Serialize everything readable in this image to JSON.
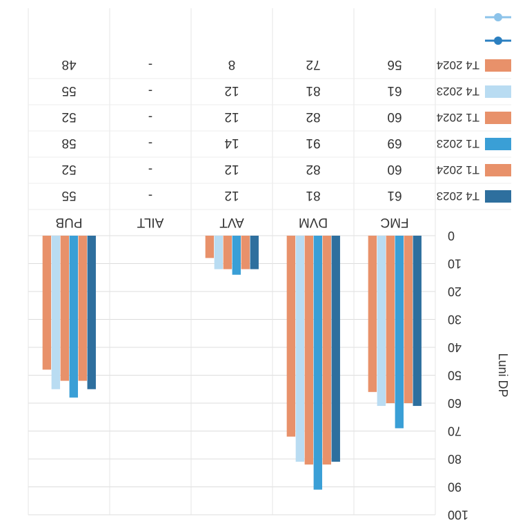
{
  "chart_data": {
    "type": "bar",
    "ylabel": "Luni DP",
    "ylim": [
      0,
      100
    ],
    "yticks": [
      0,
      10,
      20,
      30,
      40,
      50,
      60,
      70,
      80,
      90,
      100
    ],
    "categories": [
      "FMC",
      "DVM",
      "AVT",
      "AILT",
      "PUB"
    ],
    "grid": true,
    "legend_placement": "bottom-left table",
    "series": [
      {
        "name": "T4 2023",
        "color": "#2e6f9e",
        "values": [
          61,
          81,
          12,
          null,
          55
        ],
        "labels": [
          "61",
          "81",
          "12",
          "-",
          "55"
        ]
      },
      {
        "name": "T1 2024",
        "color": "#e8916a",
        "values": [
          60,
          82,
          12,
          null,
          52
        ],
        "labels": [
          "60",
          "82",
          "12",
          "-",
          "52"
        ]
      },
      {
        "name": "T1 2023",
        "color": "#3a9fd6",
        "values": [
          69,
          91,
          14,
          null,
          58
        ],
        "labels": [
          "69",
          "91",
          "14",
          "-",
          "58"
        ]
      },
      {
        "name": "T1 2024",
        "color": "#e8916a",
        "values": [
          60,
          82,
          12,
          null,
          52
        ],
        "labels": [
          "60",
          "82",
          "12",
          "-",
          "52"
        ]
      },
      {
        "name": "T4 2023",
        "color": "#b9dcf2",
        "values": [
          61,
          81,
          12,
          null,
          55
        ],
        "labels": [
          "61",
          "81",
          "12",
          "-",
          "55"
        ]
      },
      {
        "name": "T4 2024",
        "color": "#e8916a",
        "values": [
          56,
          72,
          8,
          null,
          48
        ],
        "labels": [
          "56",
          "72",
          "8",
          "-",
          "48"
        ]
      }
    ],
    "extra_legend_markers": [
      {
        "style": "line-dot",
        "color": "#2b7fc0"
      },
      {
        "style": "line-dot",
        "color": "#8cc3ea"
      }
    ]
  }
}
